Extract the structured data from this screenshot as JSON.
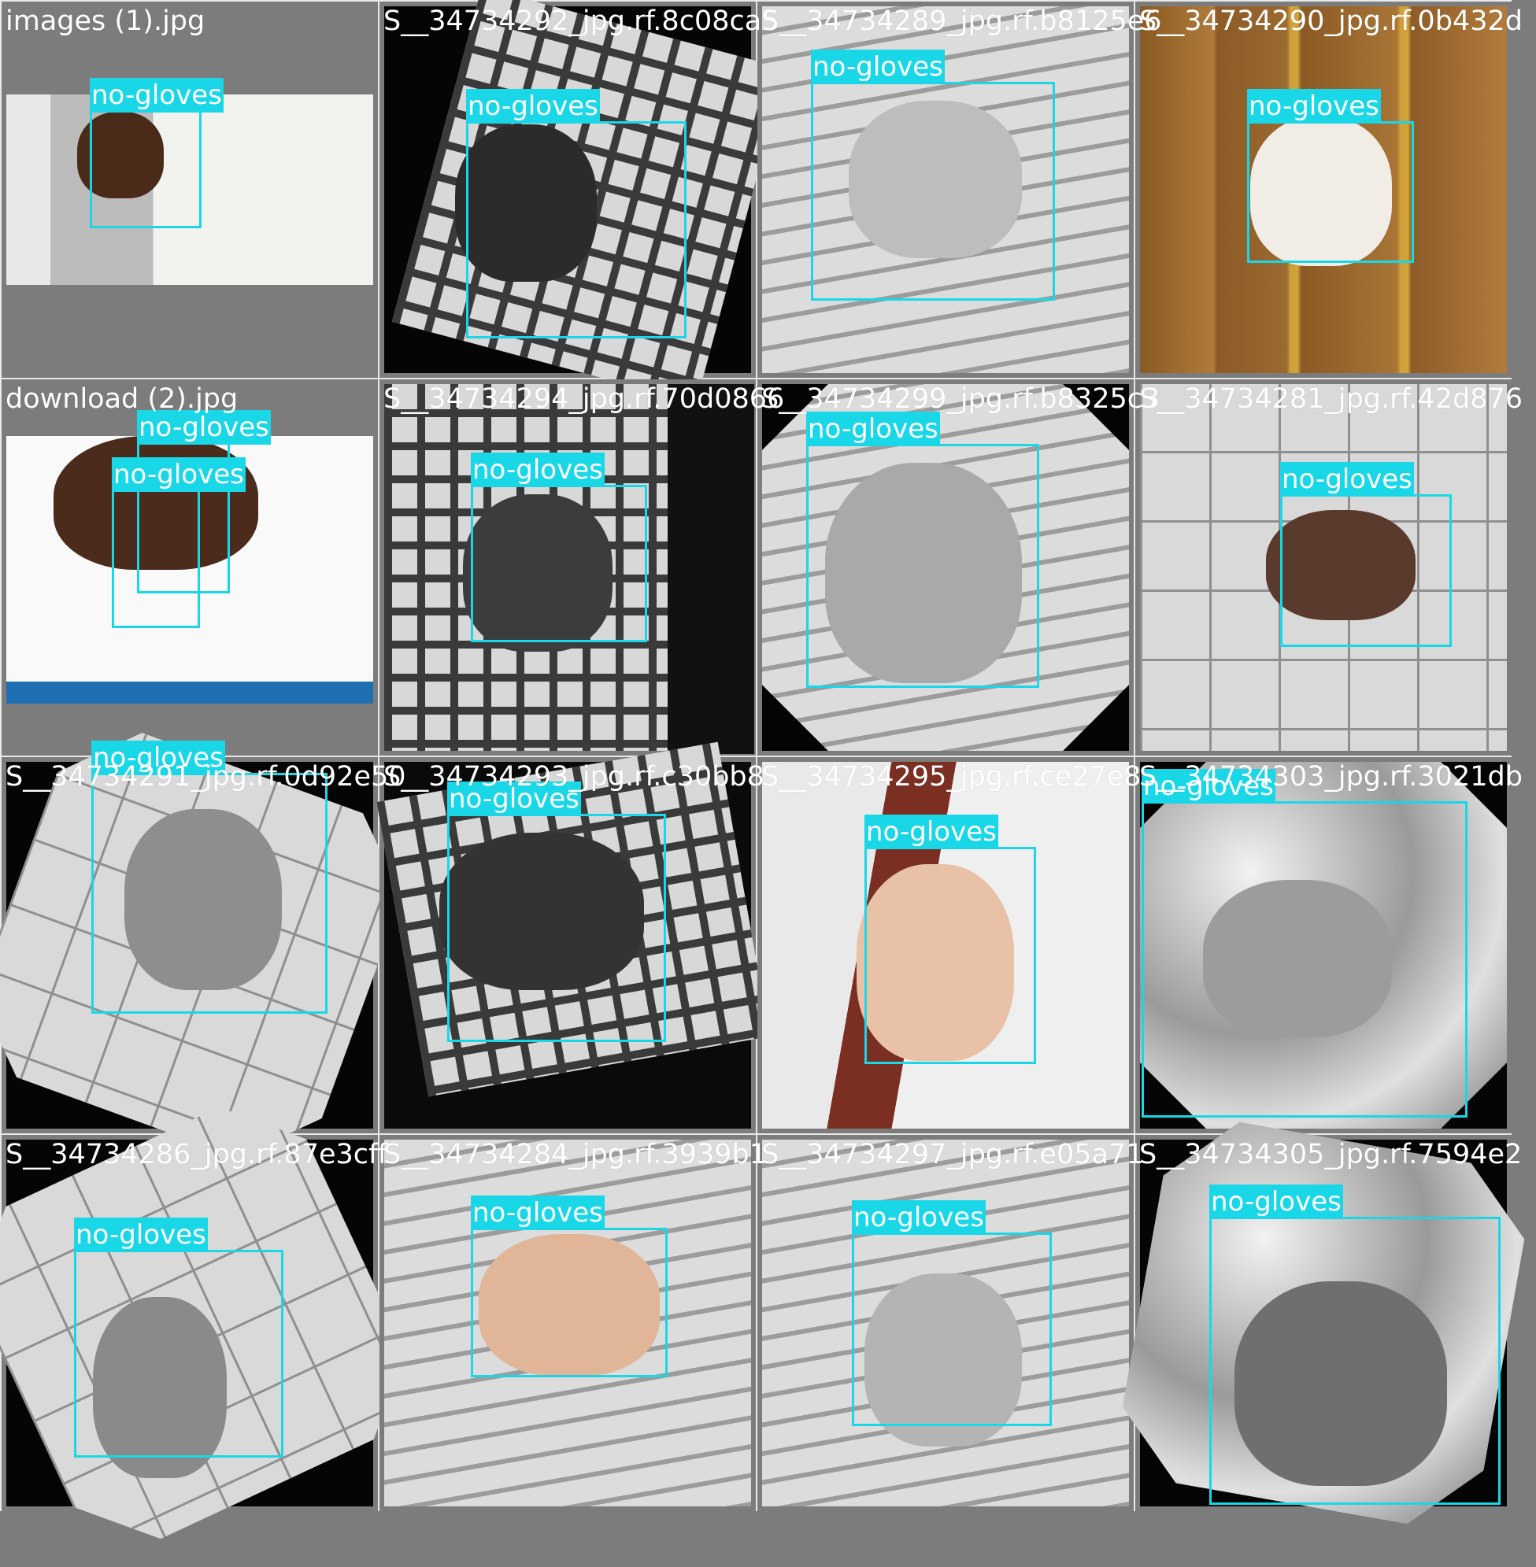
{
  "box_color": "#19d7e6",
  "tiles": [
    {
      "caption": "images (1).jpg",
      "label": "no-gloves"
    },
    {
      "caption": "S__34734292_jpg.rf.8c08ca5",
      "label": "no-gloves"
    },
    {
      "caption": "S__34734289_jpg.rf.b8125e6",
      "label": "no-gloves"
    },
    {
      "caption": "S__34734290_jpg.rf.0b432d",
      "label": "no-gloves"
    },
    {
      "caption": "download (2).jpg",
      "label": "no-gloves",
      "label2": "no-gloves"
    },
    {
      "caption": "S__34734294_jpg.rf.70d0866",
      "label": "no-gloves"
    },
    {
      "caption": "S__34734299_jpg.rf.b8325c3",
      "label": "no-gloves"
    },
    {
      "caption": "S__34734281_jpg.rf.42d876",
      "label": "no-gloves"
    },
    {
      "caption": "S__34734291_jpg.rf.0d92e50",
      "label": "no-gloves"
    },
    {
      "caption": "S__34734293_jpg.rf.c30bb8",
      "label": "no-gloves"
    },
    {
      "caption": "S__34734295_jpg.rf.ce27e8",
      "label": "no-gloves"
    },
    {
      "caption": "S__34734303_jpg.rf.3021db",
      "label": "no-gloves"
    },
    {
      "caption": "S__34734286_jpg.rf.87e3cff",
      "label": "no-gloves"
    },
    {
      "caption": "S__34734284_jpg.rf.3939b1",
      "label": "no-gloves"
    },
    {
      "caption": "S__34734297_jpg.rf.e05a71",
      "label": "no-gloves"
    },
    {
      "caption": "S__34734305_jpg.rf.7594e2",
      "label": "no-gloves"
    }
  ]
}
